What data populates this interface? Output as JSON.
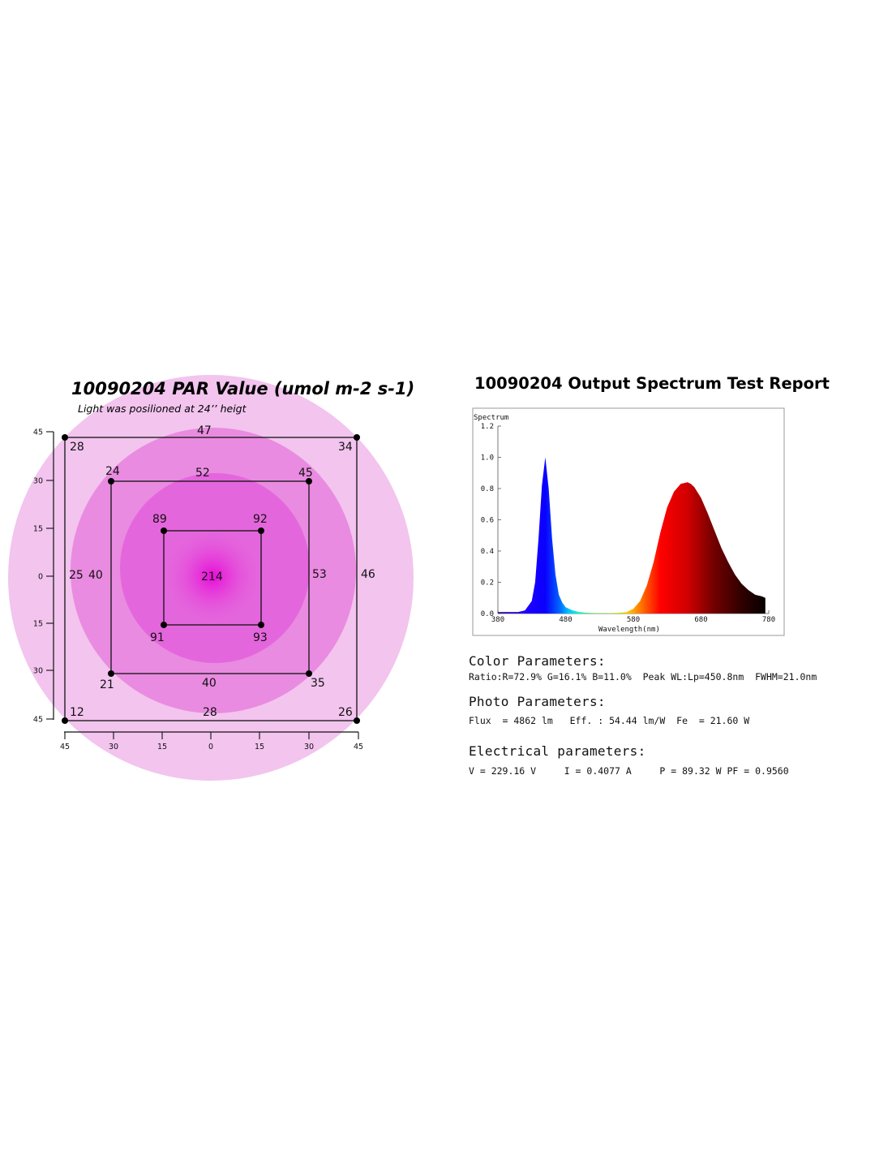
{
  "chart_data": [
    {
      "type": "heatmap",
      "title": "10090204 PAR Value (umol m-2 s-1)",
      "subtitle": "Light was posilioned at 24’’ heigt",
      "x_ticks": [
        "45",
        "30",
        "15",
        "0",
        "15",
        "30",
        "45"
      ],
      "y_ticks": [
        "45",
        "30",
        "15",
        "0",
        "15",
        "30",
        "45"
      ],
      "center_value": "214",
      "squares": [
        {
          "name": "outer",
          "corners": [
            "28",
            "34",
            "12",
            "26"
          ],
          "edges": {
            "top": "47",
            "bottom": "28",
            "left": "25",
            "right": "46"
          }
        },
        {
          "name": "middle",
          "corners": [
            "24",
            "45",
            "21",
            "35"
          ],
          "edges": {
            "top": "52",
            "bottom": "40",
            "left": "40",
            "right": "53"
          }
        },
        {
          "name": "inner",
          "corners": [
            "89",
            "92",
            "91",
            "93"
          ]
        }
      ],
      "colors": {
        "outer_ring": "#f2c4ee",
        "middle_ring": "#e98be0",
        "inner_ring": "#e466dc",
        "center": "#e61cd6"
      }
    },
    {
      "type": "line",
      "title": "10090204 Output Spectrum Test Report",
      "ylabel": "Spectrum",
      "xlabel": "Wavelength(nm)",
      "xlim": [
        380,
        780
      ],
      "ylim": [
        0,
        1.2
      ],
      "x_ticks": [
        "380",
        "480",
        "580",
        "680",
        "780"
      ],
      "y_ticks": [
        "0.0",
        "0.2",
        "0.4",
        "0.6",
        "0.8",
        "1.0",
        "1.2"
      ],
      "series": [
        {
          "x": [
            380,
            390,
            400,
            410,
            420,
            430,
            435,
            440,
            445,
            450,
            455,
            460,
            465,
            470,
            475,
            480,
            490,
            500,
            510,
            520,
            530,
            540,
            550,
            560,
            570,
            580,
            590,
            600,
            610,
            620,
            630,
            640,
            650,
            660,
            665,
            670,
            680,
            690,
            700,
            710,
            720,
            730,
            740,
            750,
            760,
            770,
            775
          ],
          "y": [
            0.01,
            0.01,
            0.01,
            0.01,
            0.02,
            0.08,
            0.2,
            0.48,
            0.82,
            1.0,
            0.8,
            0.48,
            0.25,
            0.12,
            0.07,
            0.04,
            0.02,
            0.01,
            0.005,
            0.003,
            0.002,
            0.002,
            0.003,
            0.005,
            0.01,
            0.03,
            0.08,
            0.18,
            0.33,
            0.52,
            0.68,
            0.78,
            0.83,
            0.84,
            0.83,
            0.81,
            0.74,
            0.64,
            0.53,
            0.42,
            0.33,
            0.25,
            0.19,
            0.15,
            0.12,
            0.11,
            0.1
          ]
        }
      ]
    }
  ],
  "report": {
    "color_heading": "Color Parameters:",
    "color_line": "Ratio:R=72.9% G=16.1% B=11.0%  Peak WL:Lp=450.8nm  FWHM=21.0nm",
    "photo_heading": "Photo Parameters:",
    "photo_line": "Flux  = 4862 lm   Eff. : 54.44 lm/W  Fe  = 21.60 W",
    "electrical_heading": "Electrical parameters:",
    "electrical_line": "V = 229.16 V     I = 0.4077 A     P = 89.32 W PF = 0.9560"
  }
}
